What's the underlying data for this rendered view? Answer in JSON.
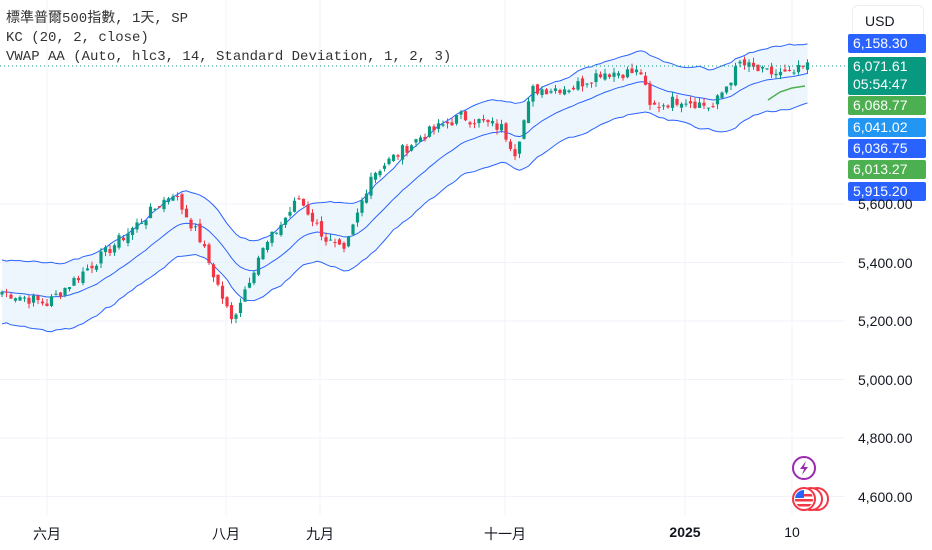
{
  "legend": {
    "symbol": "標準普爾500指數, 1天, SP",
    "kc": "KC (20, 2, close)",
    "vwap": "VWAP AA (Auto, hlc3, 14, Standard Deviation, 1, 2, 3)"
  },
  "currency": "USD",
  "price_tags": [
    {
      "value": "6,158.30",
      "color": "#2962ff"
    },
    {
      "value": "6,071.61",
      "sub": "05:54:47",
      "color": "#089981"
    },
    {
      "value": "6,068.77",
      "color": "#4caf50"
    },
    {
      "value": "6,041.02",
      "color": "#2196f3"
    },
    {
      "value": "6,036.75",
      "color": "#2962ff"
    },
    {
      "value": "6,013.27",
      "color": "#4caf50"
    },
    {
      "value": "5,915.20",
      "color": "#2962ff"
    }
  ],
  "price_axis": [
    "5,600.00",
    "5,400.00",
    "5,200.00",
    "5,000.00",
    "4,800.00",
    "4,600.00"
  ],
  "time_axis": [
    {
      "label": "六月"
    },
    {
      "label": "八月"
    },
    {
      "label": "九月"
    },
    {
      "label": "十一月"
    },
    {
      "label": "2025",
      "bold": true
    },
    {
      "label": "10"
    }
  ],
  "colors": {
    "up": "#089981",
    "down": "#f23645",
    "band": "#2962ff",
    "fill": "#e3f0fb"
  },
  "price_path": [
    [
      0,
      5300
    ],
    [
      10,
      5260
    ],
    [
      22,
      5420
    ],
    [
      38,
      5640
    ],
    [
      44,
      5480
    ],
    [
      51,
      5200
    ],
    [
      57,
      5420
    ],
    [
      66,
      5620
    ],
    [
      72,
      5480
    ],
    [
      76,
      5430
    ],
    [
      82,
      5700
    ],
    [
      93,
      5830
    ],
    [
      102,
      5900
    ],
    [
      111,
      5860
    ],
    [
      114,
      5780
    ],
    [
      118,
      5990
    ],
    [
      127,
      6000
    ],
    [
      133,
      6050
    ],
    [
      142,
      6050
    ],
    [
      144,
      5930
    ],
    [
      151,
      5960
    ],
    [
      158,
      5930
    ],
    [
      164,
      6080
    ],
    [
      169,
      6050
    ],
    [
      175,
      6040
    ],
    [
      179,
      6071
    ]
  ]
}
